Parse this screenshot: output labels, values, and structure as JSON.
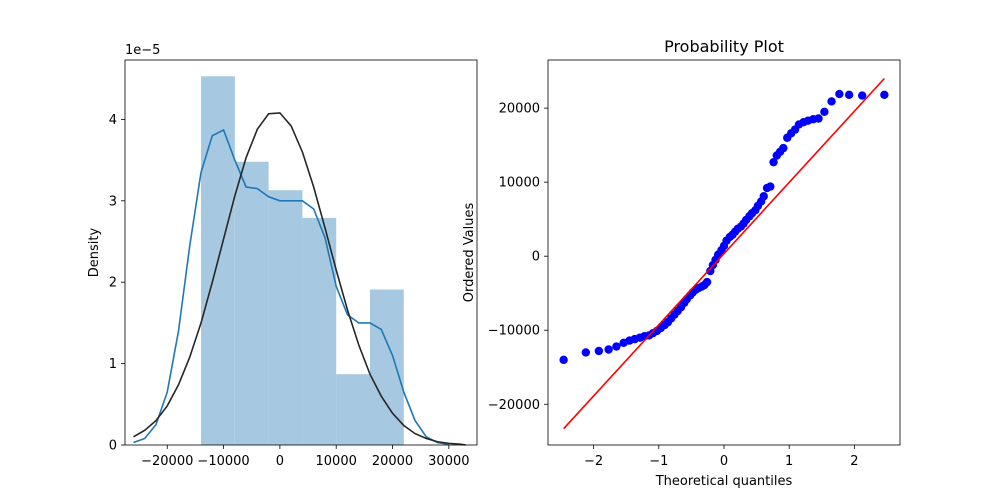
{
  "chart_data": [
    {
      "type": "histogram",
      "title": "",
      "xlabel": "",
      "ylabel": "Density",
      "y_offset_label": "1e−5",
      "xlim": [
        -27500,
        35000
      ],
      "ylim": [
        0,
        4.73
      ],
      "xticks": [
        -20000,
        -10000,
        0,
        10000,
        20000,
        30000
      ],
      "xtick_labels": [
        "−20000",
        "−10000",
        "0",
        "10000",
        "20000",
        "30000"
      ],
      "yticks": [
        0,
        1,
        2,
        3,
        4
      ],
      "ytick_labels": [
        "0",
        "1",
        "2",
        "3",
        "4"
      ],
      "bins": [
        {
          "x0": -14000,
          "x1": -8000,
          "density": 4.53
        },
        {
          "x0": -8000,
          "x1": -2000,
          "density": 3.48
        },
        {
          "x0": -2000,
          "x1": 4000,
          "density": 3.13
        },
        {
          "x0": 4000,
          "x1": 10000,
          "density": 2.79
        },
        {
          "x0": 10000,
          "x1": 16000,
          "density": 0.87
        },
        {
          "x0": 16000,
          "x1": 22000,
          "density": 1.91
        }
      ],
      "colors": {
        "bars": "#a6c8e0",
        "kde": "#1f77b4",
        "normal_fit": "#262626"
      },
      "kde_curve": {
        "x": [
          -26000,
          -24000,
          -22000,
          -20000,
          -18000,
          -16000,
          -14000,
          -12000,
          -10000,
          -8000,
          -6000,
          -4000,
          -2000,
          0,
          2000,
          4000,
          6000,
          8000,
          10000,
          12000,
          14000,
          16000,
          18000,
          20000,
          22000,
          24000,
          26000,
          28000,
          30000
        ],
        "y": [
          0.03,
          0.08,
          0.25,
          0.65,
          1.4,
          2.45,
          3.35,
          3.8,
          3.87,
          3.5,
          3.17,
          3.15,
          3.05,
          3.0,
          3.0,
          3.0,
          2.9,
          2.55,
          1.95,
          1.6,
          1.5,
          1.5,
          1.42,
          1.1,
          0.65,
          0.3,
          0.1,
          0.03,
          0.01
        ]
      },
      "normal_fit_curve": {
        "x": [
          -26000,
          -24000,
          -22000,
          -20000,
          -18000,
          -16000,
          -14000,
          -12000,
          -10000,
          -8000,
          -6000,
          -4000,
          -2000,
          0,
          2000,
          4000,
          6000,
          8000,
          10000,
          12000,
          14000,
          16000,
          18000,
          20000,
          22000,
          24000,
          26000,
          28000,
          30000,
          32000,
          33000
        ],
        "y": [
          0.1,
          0.18,
          0.3,
          0.48,
          0.74,
          1.08,
          1.5,
          2.0,
          2.53,
          3.06,
          3.53,
          3.88,
          4.07,
          4.08,
          3.92,
          3.6,
          3.17,
          2.67,
          2.15,
          1.66,
          1.23,
          0.87,
          0.6,
          0.39,
          0.24,
          0.14,
          0.08,
          0.04,
          0.02,
          0.01,
          0.0
        ]
      }
    },
    {
      "type": "scatter",
      "title": "Probability Plot",
      "xlabel": "Theoretical quantiles",
      "ylabel": "Ordered Values",
      "xlim": [
        -2.7,
        2.7
      ],
      "ylim": [
        -25500,
        26500
      ],
      "xticks": [
        -2,
        -1,
        0,
        1,
        2
      ],
      "xtick_labels": [
        "−2",
        "−1",
        "0",
        "1",
        "2"
      ],
      "yticks": [
        -20000,
        -10000,
        0,
        10000,
        20000
      ],
      "ytick_labels": [
        "−20000",
        "−10000",
        "0",
        "10000",
        "20000"
      ],
      "colors": {
        "points": "#0000ff",
        "fit_line": "#ff0000"
      },
      "fit_line": {
        "x": [
          -2.46,
          2.46
        ],
        "y": [
          -23300,
          24000
        ]
      },
      "points": {
        "x": [
          -2.46,
          -2.12,
          -1.92,
          -1.77,
          -1.65,
          -1.54,
          -1.45,
          -1.37,
          -1.29,
          -1.22,
          -1.15,
          -1.09,
          -1.03,
          -0.97,
          -0.91,
          -0.86,
          -0.81,
          -0.76,
          -0.71,
          -0.66,
          -0.61,
          -0.57,
          -0.52,
          -0.48,
          -0.43,
          -0.39,
          -0.34,
          -0.3,
          -0.26,
          -0.21,
          -0.17,
          -0.13,
          -0.09,
          -0.04,
          0.0,
          0.04,
          0.09,
          0.13,
          0.17,
          0.21,
          0.26,
          0.3,
          0.34,
          0.39,
          0.43,
          0.48,
          0.52,
          0.57,
          0.61,
          0.66,
          0.71,
          0.76,
          0.81,
          0.86,
          0.91,
          0.97,
          1.03,
          1.09,
          1.15,
          1.22,
          1.29,
          1.37,
          1.45,
          1.54,
          1.65,
          1.77,
          1.92,
          2.12,
          2.46
        ],
        "y": [
          -14000,
          -13000,
          -12800,
          -12600,
          -12200,
          -11700,
          -11400,
          -11200,
          -11000,
          -10800,
          -10700,
          -10400,
          -10100,
          -9700,
          -9300,
          -8900,
          -8400,
          -7900,
          -7400,
          -6900,
          -6300,
          -5800,
          -5300,
          -4900,
          -4500,
          -4300,
          -4100,
          -3900,
          -3500,
          -2000,
          -1200,
          -500,
          200,
          800,
          1400,
          2100,
          2600,
          2900,
          3300,
          3700,
          4000,
          4400,
          4900,
          5400,
          5800,
          6200,
          6800,
          7400,
          8100,
          9200,
          9400,
          12700,
          13600,
          14100,
          14600,
          16000,
          16600,
          17100,
          17800,
          18100,
          18300,
          18500,
          18600,
          19500,
          20900,
          21900,
          21800,
          21700,
          21800
        ]
      }
    }
  ]
}
